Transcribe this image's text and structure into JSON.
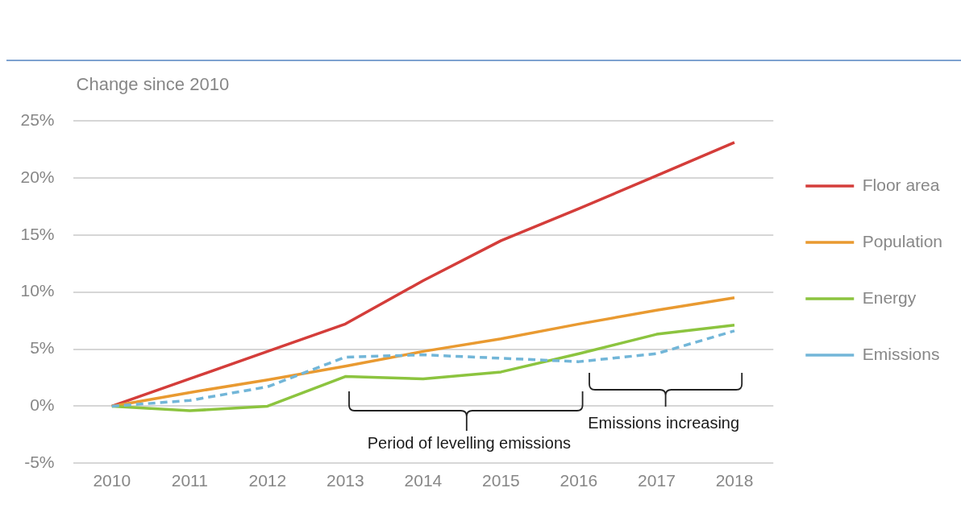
{
  "chart_data": {
    "type": "line",
    "ylabel": "Change since 2010",
    "categories": [
      "2010",
      "2011",
      "2012",
      "2013",
      "2014",
      "2015",
      "2016",
      "2017",
      "2018"
    ],
    "series": [
      {
        "name": "Floor area",
        "color": "#d43d3a",
        "values": [
          0,
          2.4,
          4.8,
          7.2,
          11.0,
          14.5,
          17.3,
          20.2,
          23.1
        ]
      },
      {
        "name": "Population",
        "color": "#e99a31",
        "values": [
          0,
          1.2,
          2.3,
          3.5,
          4.8,
          5.9,
          7.2,
          8.4,
          9.5
        ]
      },
      {
        "name": "Energy",
        "color": "#8cc43f",
        "values": [
          0,
          -0.4,
          0,
          2.6,
          2.4,
          3.0,
          4.6,
          6.3,
          7.1
        ]
      },
      {
        "name": "Emissions",
        "color": "#72b6d8",
        "values": [
          0,
          0.5,
          1.7,
          4.3,
          4.5,
          4.2,
          3.9,
          4.6,
          6.6
        ],
        "line_style": "dashed"
      }
    ],
    "ylim": [
      -5,
      25
    ],
    "yticks": [
      {
        "value": -5,
        "label": "-5%"
      },
      {
        "value": 0,
        "label": "0%"
      },
      {
        "value": 5,
        "label": "5%"
      },
      {
        "value": 10,
        "label": "10%"
      },
      {
        "value": 15,
        "label": "15%"
      },
      {
        "value": 20,
        "label": "20%"
      },
      {
        "value": 25,
        "label": "25%"
      }
    ],
    "annotations": [
      "Period of levelling emissions",
      "Emissions increasing"
    ],
    "grid": "y",
    "legend": "right",
    "marker": "none"
  }
}
